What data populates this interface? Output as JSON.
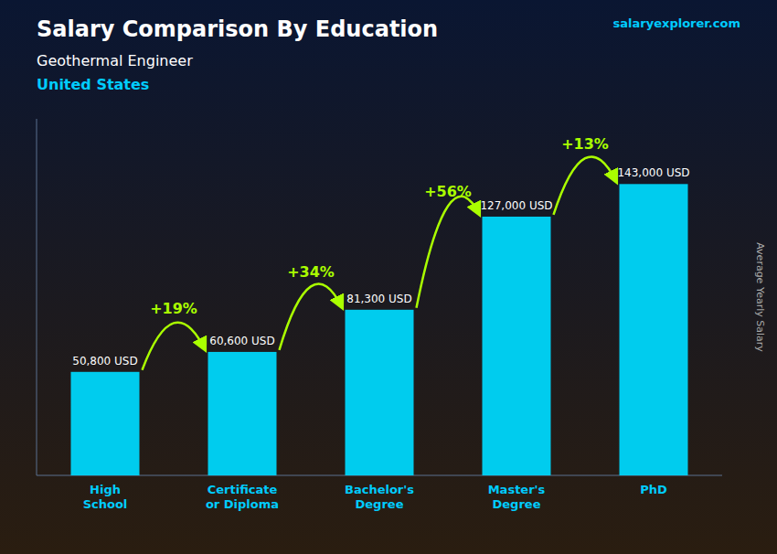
{
  "chart_data": {
    "type": "bar",
    "title": "Salary Comparison By Education",
    "subtitle": "Geothermal Engineer",
    "caption": "United States",
    "source": "salaryexplorer.com",
    "y_label": "Average Yearly Salary",
    "categories": [
      "High\nSchool",
      "Certificate\nor Diploma",
      "Bachelor's\nDegree",
      "Master's\nDegree",
      "PhD"
    ],
    "values": [
      50800,
      60600,
      81300,
      127000,
      143000
    ],
    "value_labels": [
      "50,800 USD",
      "60,600 USD",
      "81,300 USD",
      "127,000 USD",
      "143,000 USD"
    ],
    "annotations": [
      "+19%",
      "+34%",
      "+56%",
      "+13%"
    ],
    "color": "#00ccee",
    "ylim": [
      0,
      175000
    ],
    "data_labels": true,
    "tick_labels": "x",
    "grid": false
  }
}
